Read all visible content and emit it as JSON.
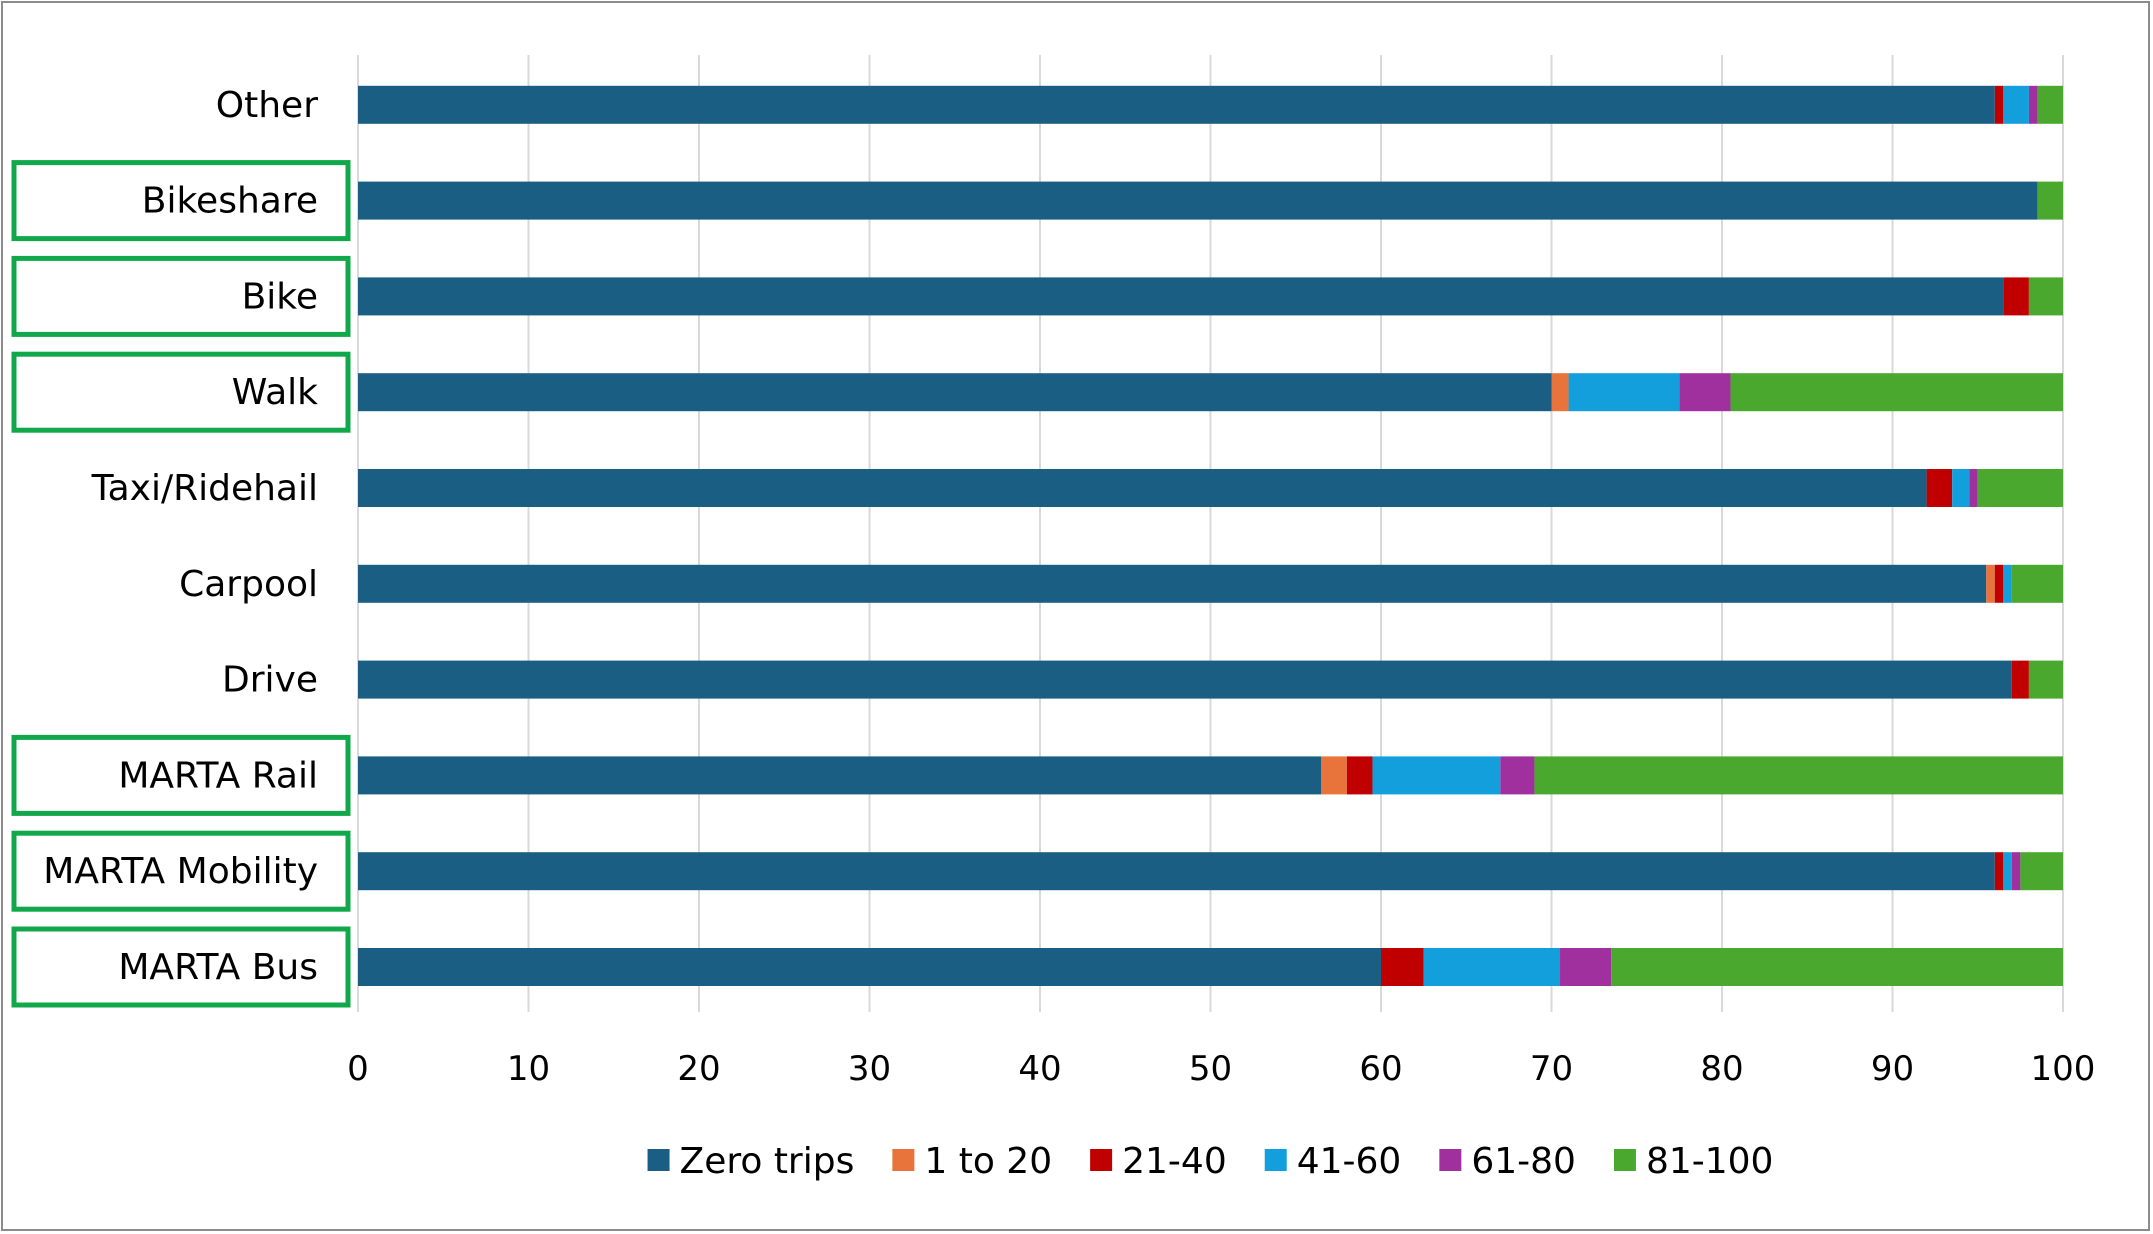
{
  "chart_data": {
    "type": "bar",
    "orientation": "horizontal",
    "stacked": true,
    "categories": [
      "MARTA Bus",
      "MARTA Mobility",
      "MARTA Rail",
      "Drive",
      "Carpool",
      "Taxi/Ridehail",
      "Walk",
      "Bike",
      "Bikeshare",
      "Other"
    ],
    "highlighted_categories": [
      "MARTA Bus",
      "MARTA Mobility",
      "MARTA Rail",
      "Walk",
      "Bike",
      "Bikeshare"
    ],
    "highlight_color": "#10a84a",
    "series": [
      {
        "name": "Zero trips",
        "color": "#1a5e84",
        "values": [
          60.0,
          96.0,
          56.5,
          97.0,
          95.5,
          92.0,
          70.0,
          96.5,
          98.5,
          96.0
        ]
      },
      {
        "name": "1 to 20",
        "color": "#e8743b",
        "values": [
          0.0,
          0.0,
          1.5,
          0.0,
          0.5,
          0.0,
          1.0,
          0.0,
          0.0,
          0.0
        ]
      },
      {
        "name": "21-40",
        "color": "#c00000",
        "values": [
          2.5,
          0.5,
          1.5,
          1.0,
          0.5,
          1.5,
          0.0,
          1.5,
          0.0,
          0.5
        ]
      },
      {
        "name": "41-60",
        "color": "#139fdb",
        "values": [
          8.0,
          0.5,
          7.5,
          0.0,
          0.5,
          1.0,
          6.5,
          0.0,
          0.0,
          1.5
        ]
      },
      {
        "name": "61-80",
        "color": "#a0309e",
        "values": [
          3.0,
          0.5,
          2.0,
          0.0,
          0.0,
          0.5,
          3.0,
          0.0,
          0.0,
          0.5
        ]
      },
      {
        "name": "81-100",
        "color": "#4ba82e",
        "values": [
          26.5,
          2.5,
          31.0,
          2.0,
          3.0,
          5.0,
          19.5,
          2.0,
          1.5,
          1.5
        ]
      }
    ],
    "xlim": [
      0,
      100
    ],
    "xticks": [
      "0",
      "10",
      "20",
      "30",
      "40",
      "50",
      "60",
      "70",
      "80",
      "90",
      "100"
    ],
    "grid": "vertical",
    "legend_position": "bottom",
    "title": "",
    "xlabel": "",
    "ylabel": ""
  }
}
